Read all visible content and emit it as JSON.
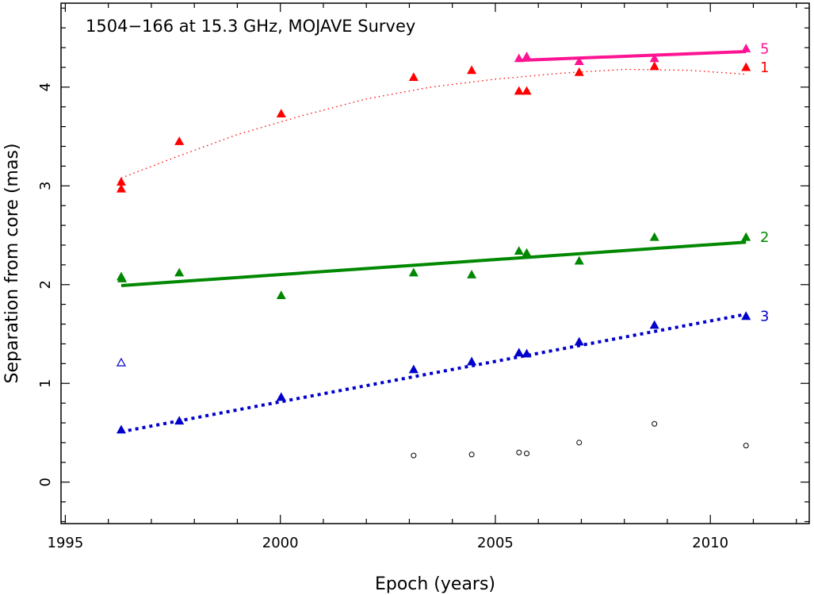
{
  "chart_data": {
    "type": "scatter",
    "title": "1504−166 at 15.3 GHz, MOJAVE Survey",
    "xlabel": "Epoch (years)",
    "ylabel": "Separation from core (mas)",
    "xlim": [
      1994.9,
      2012.3
    ],
    "ylim": [
      -0.42,
      4.85
    ],
    "xticks": [
      1995,
      2000,
      2005,
      2010
    ],
    "yticks": [
      0,
      1,
      2,
      3,
      4
    ],
    "grid": false,
    "series": [
      {
        "name": "5",
        "color": "#ff1493",
        "marker": "filled-triangle",
        "points": [
          [
            2005.55,
            4.29
          ],
          [
            2005.73,
            4.31
          ],
          [
            2006.95,
            4.26
          ],
          [
            2008.7,
            4.29
          ],
          [
            2010.83,
            4.39
          ]
        ],
        "fit": {
          "style": "solid",
          "width": 4,
          "points": [
            [
              2005.5,
              4.27
            ],
            [
              2010.83,
              4.36
            ]
          ]
        }
      },
      {
        "name": "1",
        "color": "#ff0000",
        "marker": "filled-triangle",
        "points": [
          [
            1996.3,
            3.04
          ],
          [
            1996.3,
            2.97
          ],
          [
            1997.65,
            3.45
          ],
          [
            2000.02,
            3.73
          ],
          [
            2003.1,
            4.1
          ],
          [
            2004.45,
            4.17
          ],
          [
            2005.55,
            3.96
          ],
          [
            2005.73,
            3.96
          ],
          [
            2006.95,
            4.15
          ],
          [
            2008.7,
            4.21
          ],
          [
            2010.83,
            4.2
          ]
        ],
        "fit": {
          "style": "dotted",
          "width": 1.3,
          "points": [
            [
              1996.3,
              3.08
            ],
            [
              1997.5,
              3.28
            ],
            [
              1999.0,
              3.52
            ],
            [
              2000.5,
              3.71
            ],
            [
              2002.0,
              3.88
            ],
            [
              2003.5,
              4.0
            ],
            [
              2005.0,
              4.08
            ],
            [
              2006.5,
              4.14
            ],
            [
              2008.0,
              4.18
            ],
            [
              2009.5,
              4.17
            ],
            [
              2010.83,
              4.13
            ]
          ]
        }
      },
      {
        "name": "2",
        "color": "#008800",
        "marker": "filled-triangle",
        "points": [
          [
            1996.3,
            2.08
          ],
          [
            1996.32,
            2.06
          ],
          [
            1997.65,
            2.12
          ],
          [
            2000.02,
            1.89
          ],
          [
            2003.1,
            2.12
          ],
          [
            2004.45,
            2.1
          ],
          [
            2005.55,
            2.34
          ],
          [
            2005.73,
            2.32
          ],
          [
            2006.95,
            2.24
          ],
          [
            2008.7,
            2.48
          ],
          [
            2010.83,
            2.48
          ]
        ],
        "fit": {
          "style": "solid",
          "width": 4,
          "points": [
            [
              1996.3,
              1.99
            ],
            [
              2010.83,
              2.43
            ]
          ]
        }
      },
      {
        "name": "3",
        "color": "#0000cc",
        "marker": "filled-triangle",
        "points": [
          [
            1996.3,
            0.53
          ],
          [
            1997.65,
            0.62
          ],
          [
            2000.02,
            0.86
          ],
          [
            2003.1,
            1.14
          ],
          [
            2004.45,
            1.22
          ],
          [
            2005.55,
            1.31
          ],
          [
            2005.73,
            1.3
          ],
          [
            2006.95,
            1.42
          ],
          [
            2008.7,
            1.59
          ],
          [
            2010.83,
            1.68
          ]
        ],
        "fit": {
          "style": "dotted",
          "width": 4,
          "points": [
            [
              1996.3,
              0.51
            ],
            [
              2010.83,
              1.7
            ]
          ]
        },
        "extra_points": [
          {
            "x": 1996.3,
            "y": 1.21,
            "marker": "open-triangle"
          }
        ]
      },
      {
        "name": "",
        "color": "#000000",
        "marker": "open-circle",
        "points": [
          [
            2003.1,
            0.27
          ],
          [
            2004.45,
            0.28
          ],
          [
            2005.55,
            0.3
          ],
          [
            2005.73,
            0.29
          ],
          [
            2006.95,
            0.4
          ],
          [
            2008.7,
            0.59
          ],
          [
            2010.83,
            0.37
          ]
        ]
      }
    ]
  }
}
